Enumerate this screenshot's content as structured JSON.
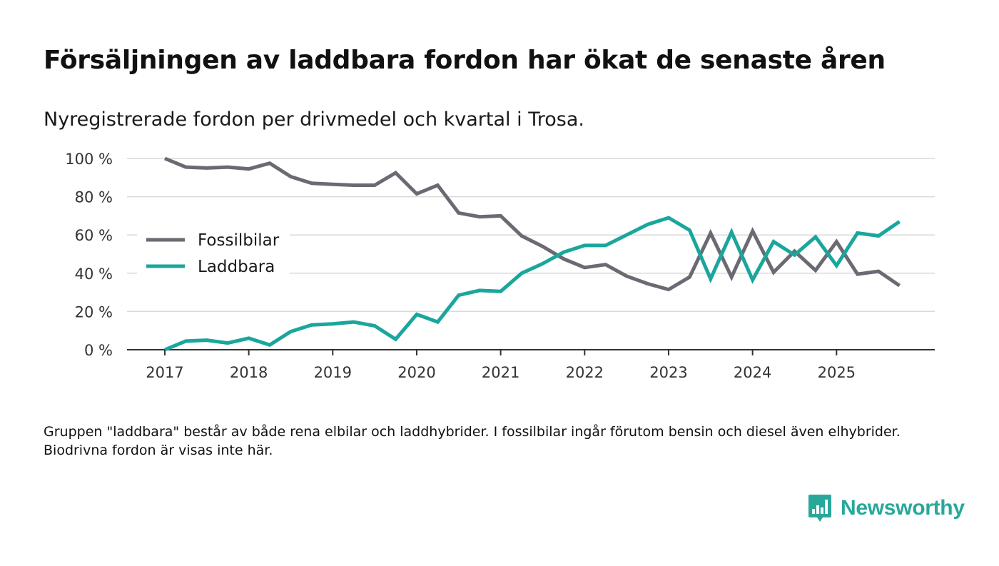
{
  "title": "Försäljningen av laddbara fordon har ökat de senaste åren",
  "subtitle": "Nyregistrerade fordon per drivmedel och kvartal i Trosa.",
  "footnote": "Gruppen \"laddbara\" består av både rena elbilar och laddhybrider. I fossilbilar ingår förutom bensin och diesel även elhybrider. Biodrivna fordon är visas inte här.",
  "brand": {
    "name": "Newsworthy",
    "color": "#28a89b"
  },
  "chart_data": {
    "type": "line",
    "title": "Försäljningen av laddbara fordon har ökat de senaste åren",
    "xlabel": "",
    "ylabel": "",
    "ylim": [
      0,
      100
    ],
    "yticks": [
      0,
      20,
      40,
      60,
      80,
      100
    ],
    "ytick_labels": [
      "0 %",
      "20 %",
      "40 %",
      "60 %",
      "80 %",
      "100 %"
    ],
    "xlim": [
      2016.55,
      2026.17
    ],
    "xticks": [
      2017,
      2018,
      2019,
      2020,
      2021,
      2022,
      2023,
      2024,
      2025
    ],
    "xtick_labels": [
      "2017",
      "2018",
      "2019",
      "2020",
      "2021",
      "2022",
      "2023",
      "2024",
      "2025"
    ],
    "grid": true,
    "legend_position": "left-middle",
    "x": [
      2017,
      2017.25,
      2017.5,
      2017.75,
      2018,
      2018.25,
      2018.5,
      2018.75,
      2019,
      2019.25,
      2019.5,
      2019.75,
      2020,
      2020.25,
      2020.5,
      2020.75,
      2021,
      2021.25,
      2021.5,
      2021.75,
      2022,
      2022.25,
      2022.5,
      2022.75,
      2023,
      2023.25,
      2023.5,
      2023.75,
      2024,
      2024.25,
      2024.5,
      2024.75,
      2025,
      2025.25,
      2025.5,
      2025.75
    ],
    "series": [
      {
        "name": "Fossilbilar",
        "color": "#6b6a73",
        "values": [
          100,
          95.5,
          95,
          95.5,
          94.5,
          97.5,
          90.5,
          87,
          86.5,
          86,
          86,
          92.5,
          81.5,
          86,
          71.5,
          69.5,
          70,
          59.5,
          54,
          47.5,
          43,
          44.5,
          38.5,
          34.5,
          31.5,
          38,
          61,
          38,
          62,
          40.5,
          51.5,
          41.5,
          56.5,
          39.5,
          41,
          33.5
        ]
      },
      {
        "name": "Laddbara",
        "color": "#1aa69c",
        "values": [
          0,
          4.5,
          5,
          3.5,
          6,
          2.5,
          9.5,
          13,
          13.5,
          14.5,
          12.5,
          5.5,
          18.5,
          14.5,
          28.5,
          31,
          30.5,
          40,
          45,
          51,
          54.5,
          54.5,
          60,
          65.5,
          69,
          62.5,
          37,
          61.5,
          36.5,
          56.5,
          49.5,
          59,
          44,
          61,
          59.5,
          67
        ]
      }
    ]
  }
}
